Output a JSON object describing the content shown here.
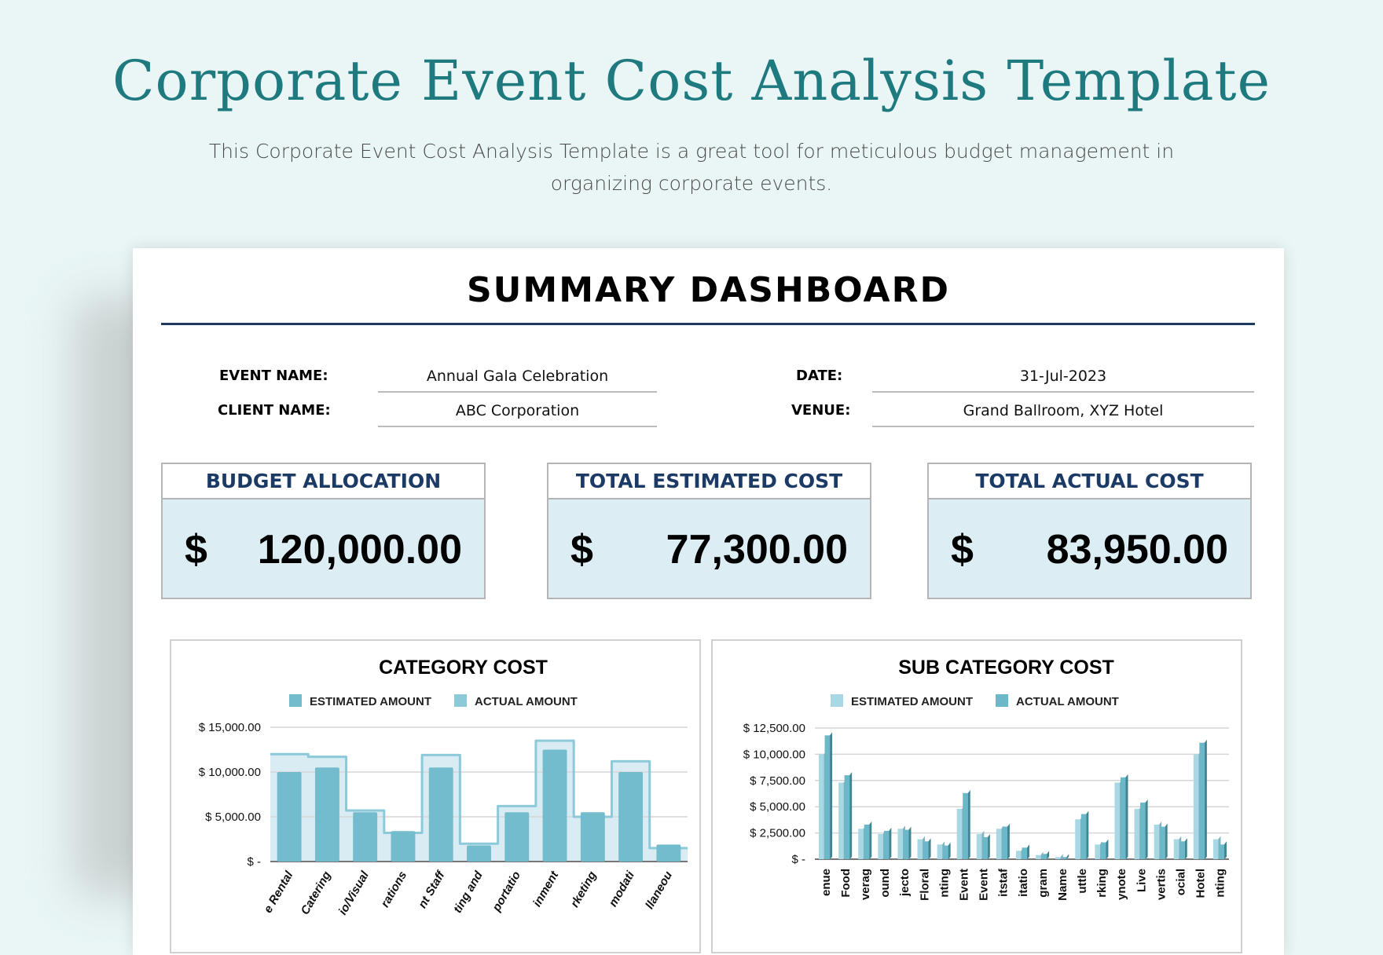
{
  "page": {
    "title": "Corporate Event Cost Analysis Template",
    "subtitle": "This Corporate Event Cost Analysis Template is a great tool for meticulous budget management in organizing corporate events."
  },
  "dashboard": {
    "title": "SUMMARY DASHBOARD",
    "event_name_label": "EVENT NAME:",
    "event_name": "Annual Gala Celebration",
    "client_name_label": "CLIENT NAME:",
    "client_name": "ABC Corporation",
    "date_label": "DATE:",
    "date": "31-Jul-2023",
    "venue_label": "VENUE:",
    "venue": "Grand Ballroom, XYZ Hotel",
    "kpis": [
      {
        "label": "BUDGET ALLOCATION",
        "currency": "$",
        "value": "120,000.00"
      },
      {
        "label": "TOTAL ESTIMATED COST",
        "currency": "$",
        "value": "77,300.00"
      },
      {
        "label": "TOTAL ACTUAL COST",
        "currency": "$",
        "value": "83,950.00"
      }
    ]
  },
  "colors": {
    "title": "#1f7a80",
    "kpi_header": "#1b3a66",
    "kpi_bg": "#dcedf4",
    "cat_est": "#72bccd",
    "cat_act_fill": "#d9ecf3",
    "cat_act_line": "#8cc9d9",
    "sub_est": "#a8d8e3",
    "sub_act": "#6bb8c8"
  },
  "chart_data": [
    {
      "type": "bar",
      "title": "CATEGORY COST",
      "legend": [
        "ESTIMATED AMOUNT",
        "ACTUAL AMOUNT"
      ],
      "legend_position": "top",
      "categories": [
        "e Rental",
        "Catering",
        "io/Visual",
        "rations",
        "nt Staff",
        "ting and",
        "portatio",
        "inment",
        "rketing",
        "modati",
        "llaneou"
      ],
      "ylim": [
        0,
        15000
      ],
      "yticks": [
        {
          "v": 15000,
          "label": "$ 15,000.00"
        },
        {
          "v": 10000,
          "label": "$ 10,000.00"
        },
        {
          "v": 5000,
          "label": "$ 5,000.00"
        },
        {
          "v": 0,
          "label": "$ -"
        }
      ],
      "grid": true,
      "series": [
        {
          "name": "ESTIMATED AMOUNT",
          "style": "bar",
          "values": [
            10000,
            10500,
            5500,
            3400,
            10500,
            1800,
            5500,
            12500,
            5500,
            10000,
            1900
          ]
        },
        {
          "name": "ACTUAL AMOUNT",
          "style": "step-area",
          "values": [
            12000,
            11700,
            5700,
            3200,
            11900,
            2000,
            6200,
            13500,
            5000,
            11200,
            1500
          ]
        }
      ]
    },
    {
      "type": "bar",
      "title": "SUB CATEGORY COST",
      "legend": [
        "ESTIMATED AMOUNT",
        "ACTUAL AMOUNT"
      ],
      "legend_position": "top",
      "categories": [
        "enue",
        "Food",
        "verag",
        "ound",
        "jecto",
        "Floral",
        "nting",
        "Event",
        "Event",
        "itstaf",
        "itatio",
        "gram",
        "Name",
        "uttle",
        "rking",
        "ynote",
        "Live",
        "vertis",
        "ocial",
        "Hotel",
        "nting"
      ],
      "ylim": [
        0,
        12500
      ],
      "yticks": [
        {
          "v": 12500,
          "label": "$ 12,500.00"
        },
        {
          "v": 10000,
          "label": "$ 10,000.00"
        },
        {
          "v": 7500,
          "label": "$ 7,500.00"
        },
        {
          "v": 5000,
          "label": "$ 5,000.00"
        },
        {
          "v": 2500,
          "label": "$ 2,500.00"
        },
        {
          "v": 0,
          "label": "$ -"
        }
      ],
      "grid": true,
      "series": [
        {
          "name": "ESTIMATED AMOUNT",
          "values": [
            10000,
            7300,
            2900,
            2400,
            2900,
            1900,
            1400,
            4800,
            2400,
            2900,
            800,
            400,
            200,
            3800,
            1400,
            7300,
            4800,
            3300,
            1900,
            10000,
            1900
          ]
        },
        {
          "name": "ACTUAL AMOUNT",
          "values": [
            11800,
            8000,
            3300,
            2700,
            2800,
            1700,
            1300,
            6300,
            2100,
            3100,
            1100,
            500,
            200,
            4300,
            1600,
            7800,
            5400,
            3100,
            1700,
            11100,
            1400
          ]
        }
      ]
    }
  ]
}
